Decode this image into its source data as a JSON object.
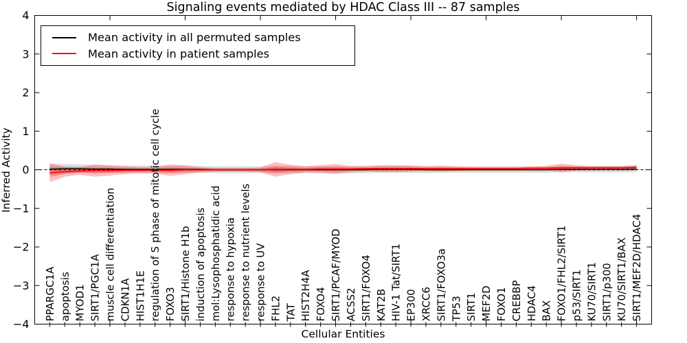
{
  "title": "Signaling events mediated by HDAC Class III -- 87 samples",
  "xlabel": "Cellular Entities",
  "ylabel": "Inferred Activity",
  "legend": {
    "entries": [
      {
        "label": "Mean activity in all permuted samples",
        "color": "#000000"
      },
      {
        "label": "Mean activity in patient samples",
        "color": "#ff0000"
      }
    ]
  },
  "colors": {
    "axis": "#000000",
    "permuted_line": "#000000",
    "patient_line": "#ff0000",
    "permuted_band": "rgba(0,0,0,0.12)",
    "patient_band": "rgba(255,0,0,0.25)",
    "background": "#ffffff"
  },
  "chart_data": {
    "type": "line",
    "title": "Signaling events mediated by HDAC Class III -- 87 samples",
    "xlabel": "Cellular Entities",
    "ylabel": "Inferred Activity",
    "ylim": [
      -4,
      4
    ],
    "yticks": [
      -4,
      -3,
      -2,
      -1,
      0,
      1,
      2,
      3,
      4
    ],
    "x_major_ticks": [
      0,
      5,
      10,
      15,
      20,
      25,
      30,
      35,
      40
    ],
    "grid": false,
    "legend_position": "upper-left",
    "categories": [
      "PPARGC1A",
      "apoptosis",
      "MYOD1",
      "SIRT1/PGC1A",
      "muscle cell differentiation",
      "CDKN1A",
      "HIST1H1E",
      "regulation of S phase of mitotic cell cycle",
      "FOXO3",
      "SIRT1/Histone H1b",
      "induction of apoptosis",
      "mol:Lysophosphatidic acid",
      "response to hypoxia",
      "response to nutrient levels",
      "response to UV",
      "FHL2",
      "TAT",
      "HIST2H4A",
      "FOXO4",
      "SIRT1/PCAF/MYOD",
      "ACSS2",
      "SIRT1/FOXO4",
      "KAT2B",
      "HIV-1 Tat/SIRT1",
      "EP300",
      "XRCC6",
      "SIRT1/FOXO3a",
      "TP53",
      "SIRT1",
      "MEF2D",
      "FOXO1",
      "CREBBP",
      "HDAC4",
      "BAX",
      "FOXO1/FHL2/SIRT1",
      "p53/SIRT1",
      "KU70/SIRT1",
      "SIRT1/p300",
      "KU70/SIRT1/BAX",
      "SIRT1/MEF2D/HDAC4"
    ],
    "series": [
      {
        "name": "Mean activity in all permuted samples",
        "color": "#000000",
        "band_color": "rgba(0,0,0,0.12)",
        "values": [
          0.02,
          0.03,
          0.03,
          0.02,
          0.02,
          0.01,
          0.01,
          0.01,
          0.01,
          0.01,
          0.01,
          0.0,
          0.0,
          0.0,
          0.0,
          0.0,
          0.0,
          0.0,
          0.0,
          0.0,
          0.0,
          0.0,
          0.01,
          0.01,
          0.01,
          0.0,
          0.0,
          0.0,
          0.0,
          0.0,
          0.0,
          0.0,
          0.0,
          0.0,
          0.01,
          0.01,
          0.01,
          0.01,
          0.01,
          0.02
        ],
        "band_half_width": [
          0.15,
          0.12,
          0.11,
          0.11,
          0.1,
          0.1,
          0.1,
          0.1,
          0.1,
          0.1,
          0.09,
          0.09,
          0.09,
          0.09,
          0.09,
          0.1,
          0.1,
          0.09,
          0.09,
          0.09,
          0.09,
          0.09,
          0.09,
          0.09,
          0.09,
          0.09,
          0.08,
          0.08,
          0.08,
          0.08,
          0.08,
          0.08,
          0.08,
          0.08,
          0.08,
          0.08,
          0.08,
          0.08,
          0.08,
          0.09
        ]
      },
      {
        "name": "Mean activity in patient samples",
        "color": "#ff0000",
        "band_color": "rgba(255,0,0,0.25)",
        "values": [
          -0.08,
          -0.05,
          -0.03,
          -0.02,
          -0.02,
          -0.01,
          -0.01,
          -0.01,
          -0.01,
          0.0,
          0.0,
          0.0,
          0.0,
          0.0,
          0.0,
          0.01,
          0.01,
          0.01,
          0.02,
          0.02,
          0.02,
          0.03,
          0.03,
          0.03,
          0.03,
          0.03,
          0.03,
          0.03,
          0.03,
          0.03,
          0.03,
          0.03,
          0.04,
          0.04,
          0.05,
          0.05,
          0.05,
          0.05,
          0.05,
          0.06
        ],
        "band_half_width": [
          0.24,
          0.13,
          0.1,
          0.16,
          0.13,
          0.1,
          0.08,
          0.08,
          0.15,
          0.11,
          0.07,
          0.05,
          0.05,
          0.05,
          0.06,
          0.19,
          0.12,
          0.08,
          0.1,
          0.13,
          0.08,
          0.07,
          0.09,
          0.09,
          0.08,
          0.06,
          0.08,
          0.06,
          0.05,
          0.05,
          0.05,
          0.05,
          0.05,
          0.06,
          0.11,
          0.07,
          0.05,
          0.05,
          0.05,
          0.06
        ]
      }
    ],
    "zero_line": {
      "y": 0,
      "style": "dashed",
      "color": "#000000"
    }
  }
}
